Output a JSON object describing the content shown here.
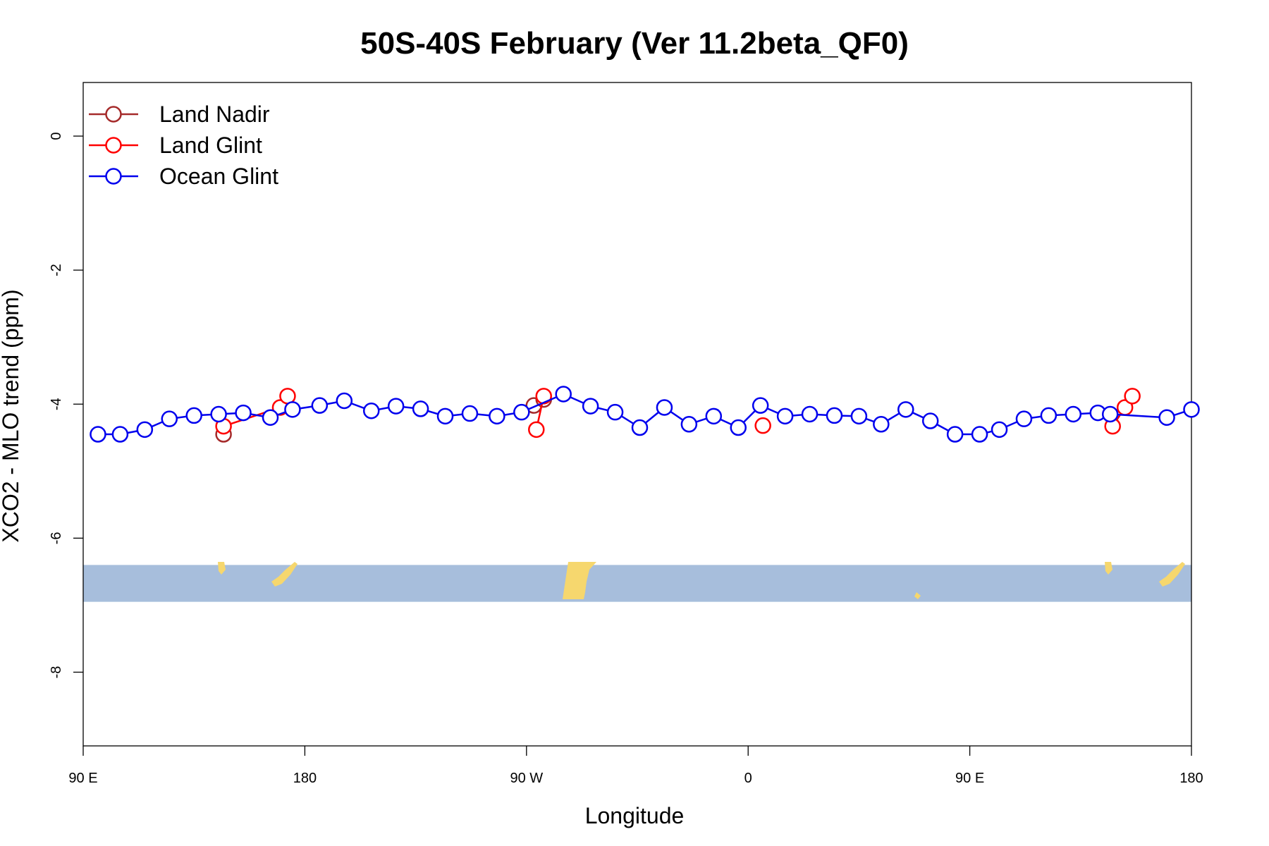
{
  "chart_data": {
    "type": "line",
    "title": "50S-40S February (Ver 11.2beta_QF0)",
    "xlabel": "Longitude",
    "ylabel": "XCO2 - MLO trend (ppm)",
    "xlim": [
      90,
      540
    ],
    "ylim": [
      -9.1,
      0.8
    ],
    "x_ticks": [
      {
        "value": 90,
        "label": "90 E"
      },
      {
        "value": 180,
        "label": "180"
      },
      {
        "value": 270,
        "label": "90 W"
      },
      {
        "value": 360,
        "label": "0"
      },
      {
        "value": 450,
        "label": "90 E"
      },
      {
        "value": 540,
        "label": "180"
      }
    ],
    "y_ticks": [
      {
        "value": 0,
        "label": "0"
      },
      {
        "value": -2,
        "label": "-2"
      },
      {
        "value": -4,
        "label": "-4"
      },
      {
        "value": -6,
        "label": "-6"
      },
      {
        "value": -8,
        "label": "-8"
      }
    ],
    "legend_position": "top-left",
    "map_strip": {
      "y_top": -6.4,
      "y_bottom": -6.95,
      "ocean_color": "#a7bedc",
      "land_color": "#f6d76e"
    },
    "series": [
      {
        "name": "Land Nadir",
        "color": "#a52a2a",
        "x": [
          147,
          273,
          277
        ],
        "y": [
          -4.45,
          -4.02,
          -3.93
        ]
      },
      {
        "name": "Land Glint",
        "color": "#ff0000",
        "x": [
          147,
          170,
          173,
          274,
          277,
          366,
          508,
          513,
          516
        ],
        "y": [
          -4.33,
          -4.05,
          -3.88,
          -4.38,
          -3.88,
          -4.32,
          -4.33,
          -4.05,
          -3.88
        ]
      },
      {
        "name": "Ocean Glint",
        "color": "#0000ee",
        "x": [
          96,
          105,
          115,
          125,
          135,
          145,
          155,
          166,
          175,
          186,
          196,
          207,
          217,
          227,
          237,
          247,
          258,
          268,
          285,
          296,
          306,
          316,
          326,
          336,
          346,
          356,
          365,
          375,
          385,
          395,
          405,
          414,
          424,
          434,
          444,
          454,
          462,
          472,
          482,
          492,
          502,
          507,
          530,
          540
        ],
        "y": [
          -4.45,
          -4.45,
          -4.38,
          -4.22,
          -4.17,
          -4.15,
          -4.13,
          -4.2,
          -4.08,
          -4.02,
          -3.95,
          -4.1,
          -4.03,
          -4.07,
          -4.18,
          -4.14,
          -4.18,
          -4.12,
          -3.85,
          -4.03,
          -4.12,
          -4.35,
          -4.05,
          -4.3,
          -4.18,
          -4.35,
          -4.02,
          -4.18,
          -4.15,
          -4.17,
          -4.18,
          -4.3,
          -4.08,
          -4.25,
          -4.45,
          -4.45,
          -4.38,
          -4.22,
          -4.17,
          -4.15,
          -4.13,
          -4.15,
          -4.2,
          -4.08
        ]
      }
    ]
  }
}
